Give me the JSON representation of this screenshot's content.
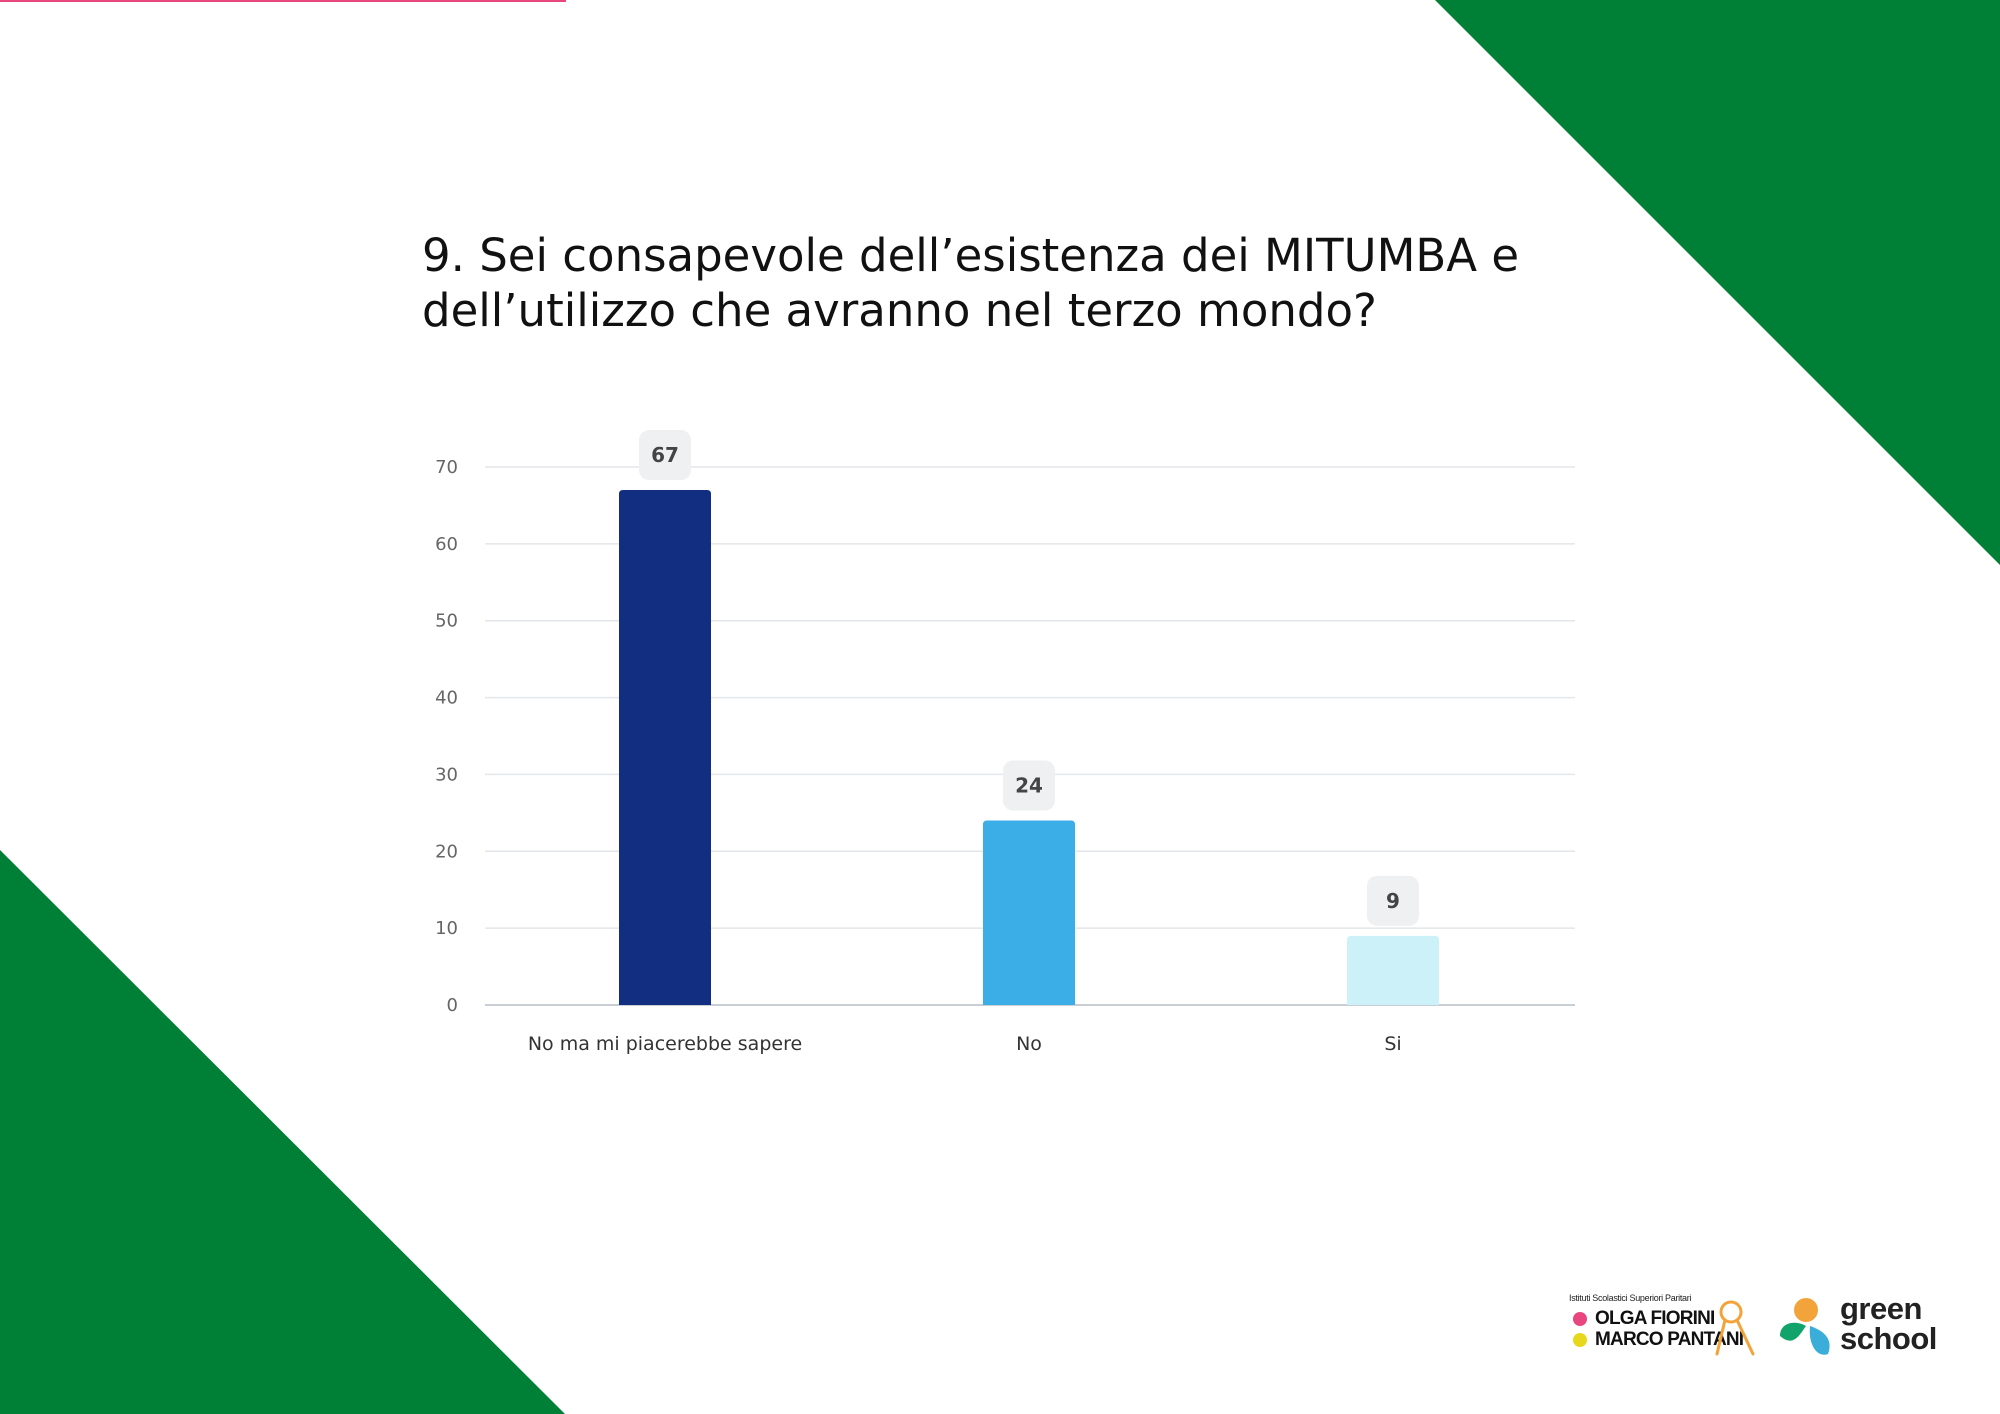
{
  "colors": {
    "background": "#ffffff",
    "corner_green": "#007f36",
    "accent_pink": "#e8467f",
    "gridline": "#e3e6ea",
    "axis_line": "#c9ced4",
    "tick_text": "#666666",
    "label_text": "#333333",
    "badge_bg": "#eef0f2",
    "badge_text": "#444444"
  },
  "slide": {
    "title_line1": "9. Sei consapevole dell’esistenza dei MITUMBA e",
    "title_line2": "dell’utilizzo che avranno nel terzo mondo?"
  },
  "chart_data": {
    "type": "bar",
    "title": "9. Sei consapevole dell’esistenza dei MITUMBA e dell’utilizzo che avranno nel terzo mondo?",
    "xlabel": "",
    "ylabel": "",
    "categories": [
      "No ma mi piacerebbe sapere",
      "No",
      "Si"
    ],
    "values": [
      67,
      24,
      9
    ],
    "bar_colors": [
      "#122e80",
      "#3baee8",
      "#cdf1f9"
    ],
    "ylim": [
      0,
      70
    ],
    "yticks": [
      0,
      10,
      20,
      30,
      40,
      50,
      60,
      70
    ],
    "grid": true,
    "data_labels": true,
    "legend": "none"
  },
  "logos": {
    "school": {
      "small_text": "Istituti Scolastici Superiori Paritari",
      "line1": "OLGA FIORINI",
      "line2": "MARCO PANTANI",
      "icon": "ribbon-icon"
    },
    "green_school": {
      "line1": "green",
      "line2": "school",
      "icon": "leaf-sun-icon"
    }
  }
}
